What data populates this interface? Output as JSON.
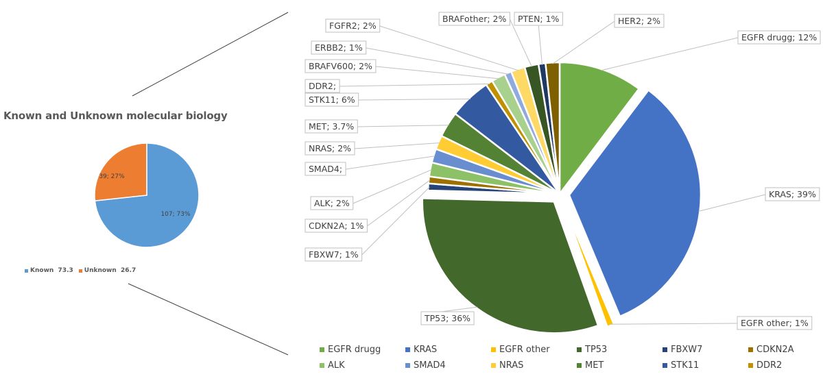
{
  "chart_data": [
    {
      "type": "pie",
      "title": "Known and Unknown molecular biology",
      "slices": [
        {
          "name": "Known",
          "value": 107,
          "percent": 73,
          "legend_value": "73.3",
          "label": "107; 73%",
          "color": "#5B9BD5"
        },
        {
          "name": "Unknown",
          "value": 39,
          "percent": 27,
          "legend_value": "26.7",
          "label": "39; 27%",
          "color": "#ED7D31"
        }
      ],
      "legend_labels": [
        "Known  73.3",
        "Unknown  26.7"
      ],
      "legend": "bottom"
    },
    {
      "type": "pie",
      "title": "",
      "slices": [
        {
          "name": "EGFR drugg",
          "value": 12,
          "label": "EGFR drugg; 12%",
          "color": "#70AD47",
          "explode": false
        },
        {
          "name": "KRAS",
          "value": 39,
          "label": "KRAS; 39%",
          "color": "#4472C4",
          "explode": true
        },
        {
          "name": "EGFR other",
          "value": 1,
          "label": "EGFR other; 1%",
          "color": "#FFC000",
          "explode": true
        },
        {
          "name": "TP53",
          "value": 36,
          "label": "TP53; 36%",
          "color": "#43682B",
          "explode": true
        },
        {
          "name": "FBXW7",
          "value": 1,
          "label": "FBXW7; 1%",
          "color": "#264478",
          "explode": false
        },
        {
          "name": "CDKN2A",
          "value": 1,
          "label": "CDKN2A; 1%",
          "color": "#9E7000",
          "explode": false
        },
        {
          "name": "ALK",
          "value": 2,
          "label": "ALK; 2%",
          "color": "#8CC168",
          "explode": false
        },
        {
          "name": "SMAD4",
          "value": 2,
          "label": "SMAD4;",
          "color": "#698ED0",
          "explode": false
        },
        {
          "name": "NRAS",
          "value": 2,
          "label": "NRAS; 2%",
          "color": "#FFCD33",
          "explode": false
        },
        {
          "name": "MET",
          "value": 3.7,
          "label": "MET; 3.7%",
          "color": "#548235",
          "explode": false
        },
        {
          "name": "STK11",
          "value": 6,
          "label": "STK11; 6%",
          "color": "#335AA1",
          "explode": false
        },
        {
          "name": "DDR2",
          "value": 1,
          "label": "DDR2;",
          "color": "#BF9000",
          "explode": false
        },
        {
          "name": "BRAFV600",
          "value": 2,
          "label": "BRAFV600; 2%",
          "color": "#A9D18E",
          "explode": false
        },
        {
          "name": "ERBB2",
          "value": 1,
          "label": "ERBB2; 1%",
          "color": "#8FAADC",
          "explode": false
        },
        {
          "name": "FGFR2",
          "value": 2,
          "label": "FGFR2; 2%",
          "color": "#FFD966",
          "explode": false
        },
        {
          "name": "BRAFother",
          "value": 2,
          "label": "BRAFother; 2%",
          "color": "#375623",
          "explode": false
        },
        {
          "name": "PTEN",
          "value": 1,
          "label": "PTEN; 1%",
          "color": "#1F3864",
          "explode": false
        },
        {
          "name": "HER2",
          "value": 2,
          "label": "HER2; 2%",
          "color": "#7F6000",
          "explode": false
        }
      ],
      "legend_entries": [
        "EGFR drugg",
        "KRAS",
        "EGFR other",
        "TP53",
        "FBXW7",
        "CDKN2A",
        "ALK",
        "SMAD4",
        "NRAS",
        "MET",
        "STK11",
        "DDR2"
      ],
      "legend": "bottom"
    }
  ]
}
